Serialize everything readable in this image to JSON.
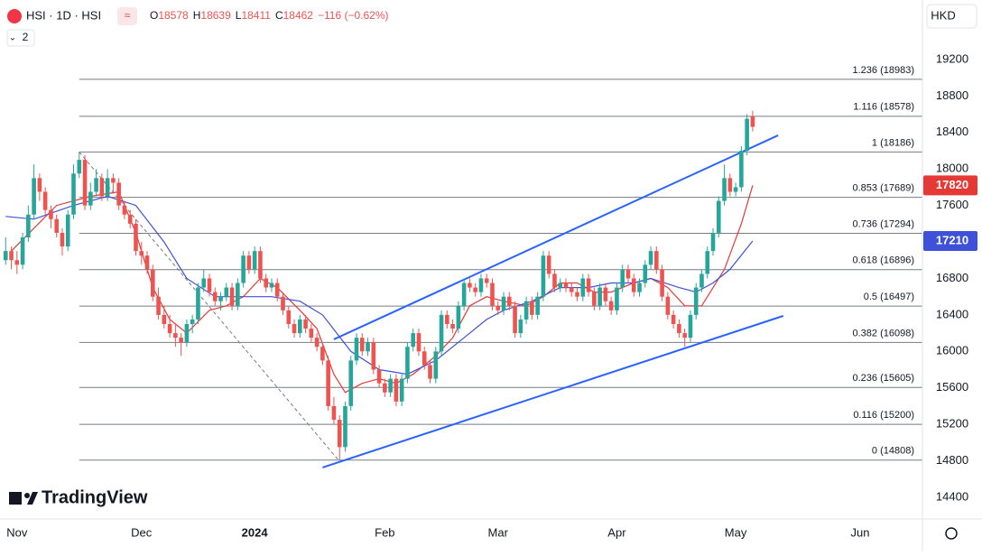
{
  "header": {
    "symbol": "HSI · 1D · HSI",
    "ohlc_letters": [
      "O",
      "H",
      "L",
      "C"
    ],
    "change": "−116 (−0.62%)",
    "indicator_count": "2",
    "currency": "HKD",
    "watermark": "TradingView"
  },
  "chart_data": {
    "type": "candlestick",
    "up_color": "#26a69a",
    "down_color": "#ef5350",
    "xlim": [
      -3,
      160
    ],
    "ylim": [
      14162,
      19853
    ],
    "xticks": [
      {
        "value": 0,
        "label": "Nov"
      },
      {
        "value": 22,
        "label": "Dec"
      },
      {
        "value": 42,
        "label": "2024"
      },
      {
        "value": 65,
        "label": "Feb"
      },
      {
        "value": 85,
        "label": "Mar"
      },
      {
        "value": 106,
        "label": "Apr"
      },
      {
        "value": 127,
        "label": "May"
      },
      {
        "value": 149,
        "label": "Jun"
      }
    ],
    "yticks": [
      14400,
      14800,
      15200,
      15600,
      16000,
      16400,
      16800,
      17200,
      17600,
      18000,
      18400,
      18800,
      19200
    ],
    "x": [
      -2,
      -1,
      0,
      1,
      2,
      3,
      4,
      5,
      6,
      7,
      8,
      9,
      10,
      11,
      12,
      13,
      14,
      15,
      16,
      17,
      18,
      19,
      20,
      21,
      22,
      23,
      24,
      25,
      26,
      27,
      28,
      29,
      30,
      31,
      32,
      33,
      34,
      35,
      36,
      37,
      38,
      39,
      40,
      41,
      42,
      43,
      44,
      45,
      46,
      47,
      48,
      49,
      50,
      51,
      52,
      53,
      54,
      55,
      56,
      57,
      58,
      59,
      60,
      61,
      62,
      63,
      64,
      65,
      66,
      67,
      68,
      69,
      70,
      71,
      72,
      73,
      74,
      75,
      76,
      77,
      78,
      79,
      80,
      81,
      82,
      83,
      84,
      85,
      86,
      87,
      88,
      89,
      90,
      91,
      92,
      93,
      94,
      95,
      96,
      97,
      98,
      99,
      100,
      101,
      102,
      103,
      104,
      105,
      106,
      107,
      108,
      109,
      110,
      111,
      112,
      113,
      114,
      115,
      116,
      117,
      118,
      119,
      120,
      121,
      122,
      123,
      124,
      125,
      126,
      127,
      128,
      129,
      130
    ],
    "candles": [
      [
        17000,
        17250,
        16950,
        17100
      ],
      [
        17100,
        17150,
        16900,
        17000
      ],
      [
        17000,
        17100,
        16850,
        16950
      ],
      [
        16950,
        17300,
        16900,
        17250
      ],
      [
        17250,
        17600,
        17200,
        17500
      ],
      [
        17500,
        18050,
        17450,
        17900
      ],
      [
        17900,
        17950,
        17650,
        17750
      ],
      [
        17750,
        17800,
        17500,
        17550
      ],
      [
        17550,
        17600,
        17350,
        17450
      ],
      [
        17450,
        17500,
        17250,
        17300
      ],
      [
        17300,
        17350,
        17050,
        17150
      ],
      [
        17150,
        17550,
        17100,
        17500
      ],
      [
        17500,
        18050,
        17450,
        17950
      ],
      [
        17950,
        18186,
        17900,
        18100
      ],
      [
        18100,
        18150,
        17550,
        17600
      ],
      [
        17600,
        17850,
        17550,
        17750
      ],
      [
        17750,
        18000,
        17700,
        17900
      ],
      [
        17900,
        17950,
        17650,
        17700
      ],
      [
        17700,
        18000,
        17650,
        17900
      ],
      [
        17900,
        17950,
        17750,
        17850
      ],
      [
        17850,
        17900,
        17550,
        17600
      ],
      [
        17600,
        17650,
        17450,
        17500
      ],
      [
        17500,
        17550,
        17350,
        17400
      ],
      [
        17400,
        17450,
        17050,
        17100
      ],
      [
        17100,
        17200,
        16950,
        17050
      ],
      [
        17050,
        17100,
        16850,
        16900
      ],
      [
        16900,
        16950,
        16550,
        16600
      ],
      [
        16600,
        16700,
        16350,
        16400
      ],
      [
        16400,
        16500,
        16250,
        16300
      ],
      [
        16300,
        16400,
        16150,
        16200
      ],
      [
        16200,
        16300,
        16050,
        16150
      ],
      [
        16150,
        16200,
        15950,
        16100
      ],
      [
        16100,
        16350,
        16050,
        16300
      ],
      [
        16300,
        16400,
        16200,
        16350
      ],
      [
        16350,
        16750,
        16300,
        16700
      ],
      [
        16700,
        16900,
        16650,
        16800
      ],
      [
        16800,
        16850,
        16600,
        16650
      ],
      [
        16650,
        16700,
        16500,
        16550
      ],
      [
        16550,
        16650,
        16450,
        16600
      ],
      [
        16600,
        16750,
        16550,
        16700
      ],
      [
        16700,
        16750,
        16450,
        16500
      ],
      [
        16500,
        16800,
        16450,
        16750
      ],
      [
        16750,
        17100,
        16700,
        17050
      ],
      [
        17050,
        17100,
        16850,
        16900
      ],
      [
        16900,
        17150,
        16850,
        17100
      ],
      [
        17100,
        17150,
        16750,
        16800
      ],
      [
        16800,
        16850,
        16650,
        16700
      ],
      [
        16700,
        16800,
        16650,
        16750
      ],
      [
        16750,
        16800,
        16550,
        16600
      ],
      [
        16600,
        16650,
        16400,
        16450
      ],
      [
        16450,
        16500,
        16250,
        16300
      ],
      [
        16300,
        16350,
        16150,
        16200
      ],
      [
        16200,
        16400,
        16150,
        16350
      ],
      [
        16350,
        16400,
        16200,
        16250
      ],
      [
        16250,
        16300,
        16100,
        16150
      ],
      [
        16150,
        16200,
        16000,
        16050
      ],
      [
        16050,
        16100,
        15850,
        15900
      ],
      [
        15900,
        15950,
        15350,
        15400
      ],
      [
        15400,
        15500,
        15200,
        15250
      ],
      [
        15250,
        15300,
        14808,
        14950
      ],
      [
        14950,
        15450,
        14900,
        15400
      ],
      [
        15400,
        15950,
        15350,
        15900
      ],
      [
        15900,
        16200,
        15850,
        16150
      ],
      [
        16150,
        16200,
        15950,
        16000
      ],
      [
        16000,
        16150,
        15950,
        16100
      ],
      [
        16100,
        16150,
        15750,
        15800
      ],
      [
        15800,
        15850,
        15600,
        15650
      ],
      [
        15650,
        15700,
        15500,
        15550
      ],
      [
        15550,
        15750,
        15500,
        15700
      ],
      [
        15700,
        15750,
        15400,
        15450
      ],
      [
        15450,
        15750,
        15400,
        15700
      ],
      [
        15700,
        16100,
        15650,
        16050
      ],
      [
        16050,
        16250,
        16000,
        16200
      ],
      [
        16200,
        16250,
        15950,
        16000
      ],
      [
        16000,
        16050,
        15800,
        15850
      ],
      [
        15850,
        15900,
        15650,
        15700
      ],
      [
        15700,
        16050,
        15650,
        16000
      ],
      [
        16000,
        16450,
        15950,
        16400
      ],
      [
        16400,
        16450,
        16250,
        16300
      ],
      [
        16300,
        16350,
        16200,
        16250
      ],
      [
        16250,
        16550,
        16200,
        16500
      ],
      [
        16500,
        16800,
        16450,
        16750
      ],
      [
        16750,
        16800,
        16650,
        16700
      ],
      [
        16700,
        16750,
        16600,
        16650
      ],
      [
        16650,
        16850,
        16600,
        16800
      ],
      [
        16800,
        16850,
        16700,
        16750
      ],
      [
        16750,
        16800,
        16450,
        16500
      ],
      [
        16500,
        16550,
        16400,
        16450
      ],
      [
        16450,
        16650,
        16400,
        16600
      ],
      [
        16600,
        16650,
        16450,
        16500
      ],
      [
        16500,
        16550,
        16150,
        16200
      ],
      [
        16200,
        16400,
        16150,
        16350
      ],
      [
        16350,
        16600,
        16300,
        16550
      ],
      [
        16550,
        16600,
        16350,
        16400
      ],
      [
        16400,
        16650,
        16350,
        16600
      ],
      [
        16600,
        17100,
        16550,
        17050
      ],
      [
        17050,
        17100,
        16800,
        16850
      ],
      [
        16850,
        16900,
        16650,
        16700
      ],
      [
        16700,
        16800,
        16650,
        16750
      ],
      [
        16750,
        16800,
        16650,
        16700
      ],
      [
        16700,
        16750,
        16600,
        16650
      ],
      [
        16650,
        16700,
        16550,
        16600
      ],
      [
        16600,
        16850,
        16550,
        16800
      ],
      [
        16800,
        16850,
        16600,
        16650
      ],
      [
        16650,
        16700,
        16450,
        16500
      ],
      [
        16500,
        16750,
        16450,
        16700
      ],
      [
        16700,
        16750,
        16500,
        16550
      ],
      [
        16550,
        16600,
        16400,
        16450
      ],
      [
        16450,
        16750,
        16400,
        16700
      ],
      [
        16700,
        16950,
        16650,
        16900
      ],
      [
        16900,
        16950,
        16750,
        16800
      ],
      [
        16800,
        16850,
        16600,
        16650
      ],
      [
        16650,
        16800,
        16600,
        16750
      ],
      [
        16750,
        17000,
        16700,
        16950
      ],
      [
        16950,
        17150,
        16900,
        17100
      ],
      [
        17100,
        17150,
        16850,
        16900
      ],
      [
        16900,
        16950,
        16550,
        16600
      ],
      [
        16600,
        16650,
        16350,
        16400
      ],
      [
        16400,
        16450,
        16250,
        16300
      ],
      [
        16300,
        16350,
        16150,
        16200
      ],
      [
        16200,
        16250,
        16050,
        16150
      ],
      [
        16150,
        16450,
        16100,
        16400
      ],
      [
        16400,
        16750,
        16350,
        16700
      ],
      [
        16700,
        16900,
        16650,
        16850
      ],
      [
        16850,
        17150,
        16800,
        17100
      ],
      [
        17100,
        17350,
        17050,
        17300
      ],
      [
        17300,
        17700,
        17250,
        17650
      ],
      [
        17650,
        18050,
        17600,
        17900
      ],
      [
        17900,
        17950,
        17700,
        17750
      ],
      [
        17750,
        17850,
        17700,
        17800
      ],
      [
        17800,
        18250,
        17750,
        18200
      ],
      [
        18200,
        18600,
        18150,
        18550
      ],
      [
        18578,
        18639,
        18411,
        18462
      ]
    ],
    "series": [
      {
        "color": "#e53935",
        "x": [
          -1,
          7,
          13,
          18,
          21,
          24,
          27,
          30,
          34,
          37,
          40,
          43,
          46,
          50,
          53,
          56,
          58,
          61,
          64,
          67,
          70,
          74,
          77,
          80,
          83,
          86,
          90,
          93,
          96,
          99,
          102,
          105,
          109,
          112,
          115,
          118,
          121,
          125,
          128,
          130
        ],
        "values": [
          17100,
          17600,
          17700,
          17750,
          17300,
          16700,
          16350,
          16200,
          16450,
          16500,
          16600,
          16800,
          16700,
          16450,
          16250,
          15750,
          15550,
          15650,
          15700,
          15650,
          15750,
          15950,
          16150,
          16500,
          16600,
          16550,
          16500,
          16600,
          16750,
          16750,
          16650,
          16650,
          16750,
          16800,
          16700,
          16500,
          16500,
          16900,
          17400,
          17820
        ]
      },
      {
        "color": "#3f51d8",
        "x": [
          -2,
          3,
          10,
          16,
          21,
          26,
          30,
          35,
          40,
          45,
          50,
          54,
          59,
          64,
          69,
          74,
          78,
          83,
          86,
          91,
          96,
          101,
          105,
          109,
          112,
          117,
          120,
          123,
          126,
          130
        ],
        "values": [
          17480,
          17450,
          17600,
          17700,
          17600,
          17200,
          16800,
          16600,
          16600,
          16600,
          16550,
          16400,
          16000,
          15800,
          15750,
          15900,
          16100,
          16350,
          16450,
          16550,
          16700,
          16700,
          16750,
          16750,
          16800,
          16700,
          16650,
          16750,
          16900,
          17210
        ]
      }
    ],
    "fib_start": 11,
    "fib_levels": [
      {
        "value": 18983,
        "label": "1.236 (18983)"
      },
      {
        "value": 18578,
        "label": "1.116 (18578)"
      },
      {
        "value": 18186,
        "label": "1 (18186)"
      },
      {
        "value": 17689,
        "label": "0.853 (17689)"
      },
      {
        "value": 17294,
        "label": "0.736 (17294)"
      },
      {
        "value": 16896,
        "label": "0.618 (16896)"
      },
      {
        "value": 16497,
        "label": "0.5 (16497)"
      },
      {
        "value": 16098,
        "label": "0.382 (16098)"
      },
      {
        "value": 15605,
        "label": "0.236 (15605)"
      },
      {
        "value": 15200,
        "label": "0.116 (15200)"
      },
      {
        "value": 14808,
        "label": "0 (14808)"
      }
    ],
    "trendlines": [
      {
        "color": "#2962ff",
        "dashed": false,
        "points": [
          [
            56,
            16132
          ],
          [
            134.5,
            18369
          ]
        ]
      },
      {
        "color": "#2962ff",
        "dashed": false,
        "points": [
          [
            54,
            14727
          ],
          [
            135.4,
            16389
          ]
        ]
      },
      {
        "color": "#787b86",
        "dashed": true,
        "points": [
          [
            11,
            18186
          ],
          [
            56.8,
            14808
          ]
        ]
      }
    ]
  }
}
